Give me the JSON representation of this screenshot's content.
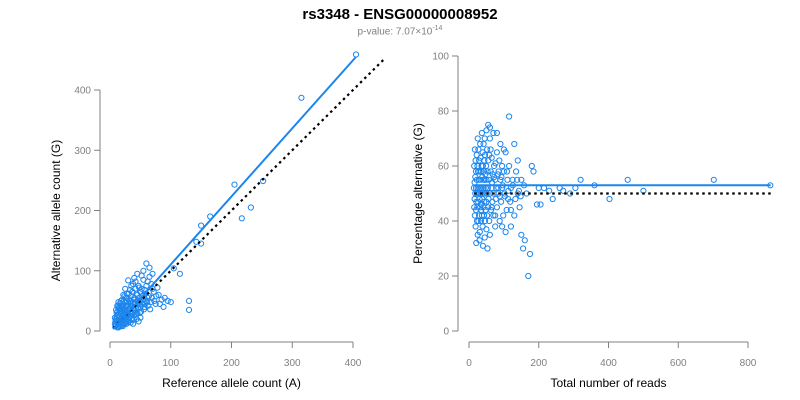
{
  "header": {
    "title": "rs3348 - ENSG00000008952",
    "pvalue_prefix": "p-value: 7.07×10",
    "pvalue_exponent": "-14"
  },
  "colors": {
    "points": "#1c86ee",
    "fit": "#1c86ee",
    "reference": "#000000",
    "axis": "#808080"
  },
  "chart_data": [
    {
      "type": "scatter",
      "xlabel": "Reference allele count (A)",
      "ylabel": "Alternative allele count (G)",
      "xlim": [
        0,
        450
      ],
      "ylim": [
        0,
        450
      ],
      "xticks": [
        0,
        100,
        200,
        300,
        400
      ],
      "yticks": [
        0,
        100,
        200,
        300,
        400
      ],
      "grid": false,
      "fit_line": [
        [
          5,
          3
        ],
        [
          405,
          455
        ]
      ],
      "reference_line": [
        [
          5,
          5
        ],
        [
          450,
          450
        ]
      ],
      "points": [
        [
          405,
          459
        ],
        [
          315,
          387
        ],
        [
          252,
          249
        ],
        [
          232,
          205
        ],
        [
          217,
          187
        ],
        [
          205,
          243
        ],
        [
          165,
          190
        ],
        [
          150,
          175
        ],
        [
          150,
          145
        ],
        [
          142,
          148
        ],
        [
          130,
          50
        ],
        [
          130,
          35
        ],
        [
          115,
          95
        ],
        [
          105,
          104
        ],
        [
          100,
          48
        ],
        [
          95,
          50
        ],
        [
          90,
          55
        ],
        [
          80,
          60
        ],
        [
          75,
          45
        ],
        [
          70,
          70
        ],
        [
          65,
          90
        ],
        [
          62,
          55
        ],
        [
          60,
          75
        ],
        [
          58,
          45
        ],
        [
          55,
          85
        ],
        [
          55,
          60
        ],
        [
          52,
          70
        ],
        [
          50,
          40
        ],
        [
          50,
          65
        ],
        [
          48,
          55
        ],
        [
          47,
          75
        ],
        [
          45,
          50
        ],
        [
          45,
          30
        ],
        [
          44,
          62
        ],
        [
          42,
          45
        ],
        [
          42,
          70
        ],
        [
          40,
          35
        ],
        [
          40,
          55
        ],
        [
          39,
          20
        ],
        [
          38,
          48
        ],
        [
          37,
          65
        ],
        [
          36,
          30
        ],
        [
          35,
          42
        ],
        [
          35,
          58
        ],
        [
          34,
          25
        ],
        [
          33,
          50
        ],
        [
          32,
          38
        ],
        [
          31,
          62
        ],
        [
          30,
          28
        ],
        [
          30,
          45
        ],
        [
          30,
          15
        ],
        [
          29,
          55
        ],
        [
          28,
          33
        ],
        [
          27,
          40
        ],
        [
          26,
          20
        ],
        [
          25,
          48
        ],
        [
          25,
          30
        ],
        [
          24,
          58
        ],
        [
          24,
          12
        ],
        [
          23,
          36
        ],
        [
          22,
          25
        ],
        [
          22,
          44
        ],
        [
          21,
          18
        ],
        [
          20,
          30
        ],
        [
          20,
          52
        ],
        [
          20,
          10
        ],
        [
          19,
          22
        ],
        [
          18,
          40
        ],
        [
          18,
          28
        ],
        [
          17,
          15
        ],
        [
          17,
          34
        ],
        [
          16,
          25
        ],
        [
          16,
          45
        ],
        [
          15,
          18
        ],
        [
          15,
          30
        ],
        [
          15,
          8
        ],
        [
          14,
          22
        ],
        [
          14,
          38
        ],
        [
          13,
          12
        ],
        [
          13,
          26
        ],
        [
          12,
          18
        ],
        [
          12,
          32
        ],
        [
          12,
          6
        ],
        [
          11,
          14
        ],
        [
          11,
          24
        ],
        [
          10,
          10
        ],
        [
          10,
          20
        ],
        [
          10,
          35
        ],
        [
          9,
          8
        ],
        [
          9,
          16
        ],
        [
          8,
          12
        ],
        [
          8,
          22
        ],
        [
          30,
          84
        ],
        [
          35,
          75
        ],
        [
          40,
          88
        ],
        [
          45,
          95
        ],
        [
          55,
          100
        ],
        [
          60,
          112
        ],
        [
          65,
          105
        ],
        [
          70,
          95
        ],
        [
          25,
          70
        ],
        [
          28,
          62
        ],
        [
          33,
          68
        ],
        [
          38,
          78
        ],
        [
          42,
          82
        ],
        [
          48,
          72
        ],
        [
          52,
          92
        ],
        [
          57,
          68
        ],
        [
          62,
          82
        ],
        [
          68,
          78
        ],
        [
          72,
          65
        ],
        [
          78,
          72
        ],
        [
          85,
          52
        ],
        [
          18,
          50
        ],
        [
          22,
          60
        ],
        [
          26,
          55
        ],
        [
          29,
          42
        ],
        [
          31,
          36
        ],
        [
          34,
          46
        ],
        [
          36,
          40
        ],
        [
          39,
          52
        ],
        [
          41,
          34
        ],
        [
          43,
          28
        ],
        [
          46,
          38
        ],
        [
          49,
          30
        ],
        [
          53,
          44
        ],
        [
          56,
          36
        ],
        [
          59,
          50
        ],
        [
          63,
          42
        ],
        [
          67,
          48
        ],
        [
          20,
          40
        ],
        [
          24,
          35
        ],
        [
          27,
          28
        ],
        [
          32,
          22
        ],
        [
          37,
          18
        ],
        [
          40,
          26
        ],
        [
          44,
          20
        ],
        [
          47,
          16
        ],
        [
          50,
          22
        ],
        [
          13,
          40
        ],
        [
          14,
          48
        ],
        [
          16,
          36
        ],
        [
          19,
          34
        ],
        [
          21,
          44
        ],
        [
          23,
          50
        ],
        [
          26,
          42
        ],
        [
          28,
          50
        ],
        [
          14,
          6
        ],
        [
          18,
          8
        ],
        [
          22,
          12
        ],
        [
          26,
          16
        ],
        [
          30,
          20
        ],
        [
          34,
          14
        ],
        [
          38,
          12
        ],
        [
          11,
          30
        ],
        [
          12,
          42
        ],
        [
          15,
          24
        ],
        [
          17,
          42
        ],
        [
          19,
          12
        ],
        [
          21,
          8
        ],
        [
          23,
          18
        ],
        [
          25,
          22
        ],
        [
          27,
          12
        ],
        [
          29,
          30
        ],
        [
          31,
          18
        ],
        [
          33,
          30
        ],
        [
          35,
          20
        ],
        [
          37,
          28
        ],
        [
          39,
          38
        ],
        [
          41,
          46
        ],
        [
          43,
          38
        ],
        [
          45,
          60
        ],
        [
          47,
          44
        ],
        [
          49,
          50
        ],
        [
          51,
          32
        ],
        [
          53,
          58
        ],
        [
          55,
          48
        ],
        [
          57,
          40
        ],
        [
          59,
          62
        ],
        [
          61,
          48
        ],
        [
          64,
          58
        ],
        [
          66,
          36
        ],
        [
          69,
          55
        ],
        [
          73,
          50
        ],
        [
          76,
          58
        ],
        [
          82,
          45
        ],
        [
          88,
          40
        ]
      ]
    },
    {
      "type": "scatter",
      "xlabel": "Total number of reads",
      "ylabel": "Percentage alternative (G)",
      "xlim": [
        0,
        870
      ],
      "ylim": [
        0,
        100
      ],
      "xticks": [
        0,
        200,
        400,
        600,
        800
      ],
      "yticks": [
        0,
        20,
        40,
        60,
        80,
        100
      ],
      "grid": false,
      "fit_line": [
        [
          15,
          53
        ],
        [
          865,
          53
        ]
      ],
      "reference_line": [
        [
          15,
          50
        ],
        [
          865,
          50
        ]
      ],
      "points": [
        [
          864,
          53
        ],
        [
          702,
          55
        ],
        [
          500,
          51
        ],
        [
          455,
          55
        ],
        [
          403,
          48
        ],
        [
          360,
          53
        ],
        [
          320,
          55
        ],
        [
          305,
          52
        ],
        [
          290,
          50
        ],
        [
          260,
          52
        ],
        [
          230,
          51
        ],
        [
          205,
          46
        ],
        [
          200,
          52
        ],
        [
          180,
          60
        ],
        [
          175,
          28
        ],
        [
          170,
          20
        ],
        [
          160,
          33
        ],
        [
          155,
          30
        ],
        [
          150,
          35
        ],
        [
          150,
          55
        ],
        [
          145,
          45
        ],
        [
          140,
          62
        ],
        [
          140,
          50
        ],
        [
          135,
          58
        ],
        [
          130,
          42
        ],
        [
          130,
          68
        ],
        [
          125,
          55
        ],
        [
          120,
          52
        ],
        [
          120,
          38
        ],
        [
          115,
          60
        ],
        [
          112,
          48
        ],
        [
          110,
          55
        ],
        [
          108,
          44
        ],
        [
          105,
          65
        ],
        [
          102,
          50
        ],
        [
          100,
          58
        ],
        [
          98,
          42
        ],
        [
          95,
          52
        ],
        [
          95,
          60
        ],
        [
          92,
          47
        ],
        [
          90,
          55
        ],
        [
          88,
          40
        ],
        [
          87,
          62
        ],
        [
          85,
          50
        ],
        [
          83,
          57
        ],
        [
          80,
          45
        ],
        [
          80,
          65
        ],
        [
          78,
          52
        ],
        [
          77,
          48
        ],
        [
          75,
          55
        ],
        [
          75,
          38
        ],
        [
          72,
          60
        ],
        [
          70,
          50
        ],
        [
          70,
          42
        ],
        [
          68,
          57
        ],
        [
          67,
          47
        ],
        [
          65,
          63
        ],
        [
          65,
          52
        ],
        [
          63,
          44
        ],
        [
          62,
          58
        ],
        [
          60,
          50
        ],
        [
          60,
          70
        ],
        [
          58,
          40
        ],
        [
          57,
          55
        ],
        [
          56,
          48
        ],
        [
          55,
          62
        ],
        [
          55,
          45
        ],
        [
          54,
          52
        ],
        [
          53,
          58
        ],
        [
          52,
          42
        ],
        [
          52,
          66
        ],
        [
          51,
          50
        ],
        [
          50,
          55
        ],
        [
          50,
          47
        ],
        [
          49,
          60
        ],
        [
          48,
          44
        ],
        [
          48,
          52
        ],
        [
          47,
          57
        ],
        [
          46,
          40
        ],
        [
          46,
          64
        ],
        [
          45,
          50
        ],
        [
          45,
          55
        ],
        [
          44,
          47
        ],
        [
          44,
          62
        ],
        [
          43,
          42
        ],
        [
          43,
          58
        ],
        [
          42,
          52
        ],
        [
          42,
          68
        ],
        [
          41,
          45
        ],
        [
          41,
          55
        ],
        [
          40,
          50
        ],
        [
          40,
          60
        ],
        [
          39,
          38
        ],
        [
          39,
          65
        ],
        [
          38,
          48
        ],
        [
          38,
          56
        ],
        [
          37,
          42
        ],
        [
          37,
          72
        ],
        [
          36,
          52
        ],
        [
          36,
          60
        ],
        [
          35,
          46
        ],
        [
          35,
          58
        ],
        [
          34,
          50
        ],
        [
          34,
          40
        ],
        [
          33,
          55
        ],
        [
          33,
          63
        ],
        [
          32,
          45
        ],
        [
          32,
          68
        ],
        [
          31,
          52
        ],
        [
          31,
          36
        ],
        [
          30,
          58
        ],
        [
          30,
          48
        ],
        [
          30,
          33
        ],
        [
          29,
          62
        ],
        [
          29,
          42
        ],
        [
          28,
          55
        ],
        [
          28,
          50
        ],
        [
          27,
          66
        ],
        [
          27,
          40
        ],
        [
          26,
          47
        ],
        [
          26,
          58
        ],
        [
          25,
          52
        ],
        [
          25,
          35
        ],
        [
          25,
          70
        ],
        [
          24,
          45
        ],
        [
          24,
          60
        ],
        [
          23,
          50
        ],
        [
          23,
          40
        ],
        [
          22,
          55
        ],
        [
          22,
          64
        ],
        [
          21,
          47
        ],
        [
          21,
          32
        ],
        [
          20,
          58
        ],
        [
          20,
          52
        ],
        [
          20,
          44
        ],
        [
          19,
          62
        ],
        [
          19,
          38
        ],
        [
          18,
          50
        ],
        [
          18,
          56
        ],
        [
          17,
          42
        ],
        [
          17,
          66
        ],
        [
          16,
          48
        ],
        [
          16,
          54
        ],
        [
          15,
          60
        ],
        [
          15,
          45
        ],
        [
          14,
          52
        ],
        [
          55,
          75
        ],
        [
          60,
          74
        ],
        [
          70,
          72
        ],
        [
          50,
          73
        ],
        [
          45,
          70
        ],
        [
          115,
          78
        ],
        [
          80,
          72
        ],
        [
          90,
          68
        ],
        [
          100,
          66
        ],
        [
          85,
          58
        ],
        [
          65,
          45
        ],
        [
          75,
          42
        ],
        [
          95,
          38
        ],
        [
          105,
          36
        ],
        [
          120,
          44
        ],
        [
          60,
          35
        ],
        [
          50,
          37
        ],
        [
          45,
          34
        ],
        [
          40,
          31
        ],
        [
          35,
          44
        ],
        [
          53,
          30
        ],
        [
          58,
          64
        ],
        [
          62,
          66
        ],
        [
          66,
          54
        ],
        [
          72,
          56
        ],
        [
          76,
          61
        ],
        [
          84,
          52
        ],
        [
          88,
          49
        ],
        [
          93,
          56
        ],
        [
          97,
          53
        ],
        [
          103,
          49
        ],
        [
          109,
          58
        ],
        [
          113,
          51
        ],
        [
          118,
          47
        ],
        [
          126,
          53
        ],
        [
          133,
          48
        ],
        [
          138,
          55
        ],
        [
          143,
          51
        ],
        [
          148,
          49
        ],
        [
          158,
          53
        ],
        [
          165,
          50
        ],
        [
          185,
          58
        ],
        [
          195,
          46
        ],
        [
          215,
          52
        ],
        [
          240,
          48
        ],
        [
          270,
          51
        ]
      ]
    }
  ]
}
